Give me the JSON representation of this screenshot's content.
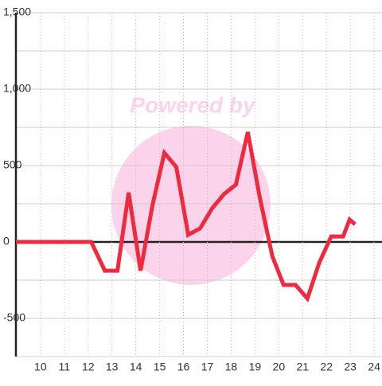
{
  "chart_data": {
    "type": "line",
    "watermark": "Powered by",
    "x": [
      8.97,
      12.13,
      12.7,
      13.23,
      13.7,
      14.2,
      14.7,
      15.2,
      15.7,
      16.2,
      16.7,
      17.2,
      17.7,
      18.2,
      18.7,
      19.2,
      19.73,
      20.2,
      20.7,
      21.2,
      21.7,
      22.2,
      22.7,
      22.97,
      23.2
    ],
    "series": [
      {
        "color": "#ee2a3f",
        "values": [
          0,
          0,
          -188,
          -188,
          323,
          -188,
          240,
          583,
          490,
          47,
          89,
          219,
          313,
          375,
          719,
          292,
          -94,
          -281,
          -281,
          -370,
          -135,
          36,
          36,
          146,
          115
        ]
      }
    ],
    "xlim": [
      8.97,
      24.33
    ],
    "xticks": [
      10,
      11,
      12,
      13,
      14,
      15,
      16,
      17,
      18,
      19,
      20,
      21,
      22,
      23,
      24
    ],
    "ylim": [
      -750,
      1500
    ],
    "yticks": [
      {
        "value": 1500,
        "label": "1,500"
      },
      {
        "value": 1000,
        "label": "1,000"
      },
      500,
      0,
      -500
    ],
    "minor_yticks": [
      1250,
      750,
      250,
      -250,
      -750
    ],
    "grid": true
  }
}
